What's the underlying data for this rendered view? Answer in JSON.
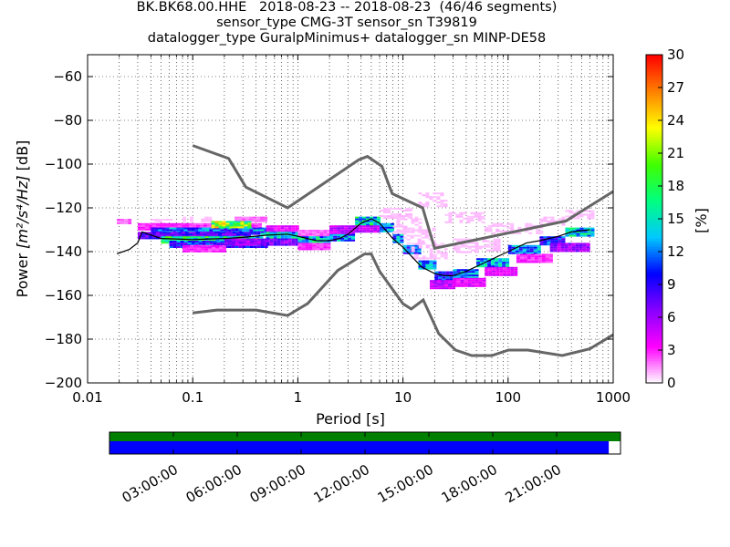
{
  "title": {
    "line1": "BK.BK68.00.HHE   2018-08-23 -- 2018-08-23  (46/46 segments)",
    "line2": "sensor_type CMG-3T sensor_sn T39819",
    "line3": "datalogger_type GuralpMinimus+ datalogger_sn MINP-DE58"
  },
  "chart_data": {
    "type": "heatmap",
    "xlabel": "Period [s]",
    "ylabel_prefix": "Power",
    "ylabel_units": "[m²/s⁴/Hz]",
    "ylabel_suffix": "[dB]",
    "x_scale": "log",
    "xlim": [
      0.01,
      1000
    ],
    "ylim": [
      -200,
      -50
    ],
    "x_ticks": [
      0.01,
      0.1,
      1,
      10,
      100,
      1000
    ],
    "x_tick_labels": [
      "0.01",
      "0.1",
      "1",
      "10",
      "100",
      "1000"
    ],
    "y_ticks": [
      -200,
      -180,
      -160,
      -140,
      -120,
      -100,
      -80,
      -60
    ],
    "y_tick_labels": [
      "−200",
      "−180",
      "−160",
      "−140",
      "−120",
      "−100",
      "−80",
      "−60"
    ],
    "grid": "dotted",
    "colorbar": {
      "label": "[%]",
      "range": [
        0,
        30
      ],
      "ticks": [
        0,
        3,
        6,
        9,
        12,
        15,
        18,
        21,
        24,
        27,
        30
      ],
      "colormap": [
        "#ffffff",
        "#ff00ff",
        "#8800ff",
        "#0000ff",
        "#00c8ff",
        "#00ff80",
        "#40ff00",
        "#ffff00",
        "#ff8000",
        "#ff0000"
      ]
    },
    "noise_models": {
      "color": "#666666",
      "high_model": {
        "x": [
          0.1,
          0.22,
          0.32,
          0.8,
          3.8,
          4.6,
          6.3,
          7.9,
          15.4,
          20,
          354.8,
          1000
        ],
        "y": [
          -91.5,
          -97.4,
          -110.5,
          -120,
          -98,
          -96.5,
          -101,
          -113.5,
          -120,
          -138.5,
          -126,
          -112.5
        ]
      },
      "low_model": {
        "x": [
          0.1,
          0.17,
          0.4,
          0.8,
          1.24,
          2.4,
          4.3,
          5,
          6,
          10,
          12,
          15.6,
          21.9,
          31.6,
          45,
          70,
          101,
          154,
          328,
          600,
          1000
        ],
        "y": [
          -168,
          -166.7,
          -166.7,
          -169.2,
          -163.7,
          -148.6,
          -141.1,
          -141.1,
          -149,
          -163.8,
          -166.2,
          -162.1,
          -177.5,
          -185,
          -187.5,
          -187.5,
          -185,
          -185,
          -187.5,
          -184.4,
          -178
        ]
      }
    },
    "mean_curve": {
      "color": "#000000",
      "x": [
        0.019,
        0.025,
        0.03,
        0.033,
        0.05,
        0.1,
        0.2,
        0.3,
        0.5,
        0.8,
        1,
        1.5,
        2,
        2.5,
        3,
        4,
        5,
        6,
        8,
        10,
        12,
        15,
        20,
        25,
        30,
        40,
        60,
        100,
        150,
        200,
        300,
        400,
        600
      ],
      "y": [
        -141,
        -139,
        -136,
        -131,
        -134,
        -134.5,
        -134,
        -133.5,
        -132.5,
        -132,
        -133,
        -135,
        -135,
        -134,
        -132,
        -127,
        -125,
        -127,
        -134,
        -138,
        -142,
        -147,
        -150,
        -151,
        -151,
        -149,
        -145,
        -140,
        -136,
        -135,
        -133,
        -131,
        -130
      ]
    },
    "psd_cells": [
      {
        "x": [
          0.019,
          0.025
        ],
        "y": [
          -127,
          -125
        ],
        "v": 2
      },
      {
        "x": [
          0.04,
          0.06
        ],
        "y": [
          -127,
          -125
        ],
        "v": 1
      },
      {
        "x": [
          0.12,
          0.15
        ],
        "y": [
          -126,
          -124
        ],
        "v": 1
      },
      {
        "x": [
          0.08,
          0.1
        ],
        "y": [
          -126,
          -124
        ],
        "v": 1
      },
      {
        "x": [
          0.25,
          0.5
        ],
        "y": [
          -126,
          -124
        ],
        "v": 2
      },
      {
        "x": [
          0.03,
          0.45
        ],
        "y": [
          -130,
          -127
        ],
        "v": 3
      },
      {
        "x": [
          0.04,
          0.6
        ],
        "y": [
          -132,
          -129
        ],
        "v": 12
      },
      {
        "x": [
          0.03,
          0.35
        ],
        "y": [
          -134,
          -131
        ],
        "v": 8
      },
      {
        "x": [
          0.05,
          0.45
        ],
        "y": [
          -136,
          -133
        ],
        "v": 16
      },
      {
        "x": [
          0.06,
          0.5
        ],
        "y": [
          -138,
          -135
        ],
        "v": 10
      },
      {
        "x": [
          0.08,
          0.2
        ],
        "y": [
          -140,
          -137
        ],
        "v": 3
      },
      {
        "x": [
          0.2,
          0.5
        ],
        "y": [
          -137,
          -134
        ],
        "v": 6
      },
      {
        "x": [
          0.15,
          0.35
        ],
        "y": [
          -129,
          -126
        ],
        "v": 20
      },
      {
        "x": [
          0.5,
          1.0
        ],
        "y": [
          -131,
          -128
        ],
        "v": 4
      },
      {
        "x": [
          0.5,
          1.0
        ],
        "y": [
          -134,
          -131
        ],
        "v": 14
      },
      {
        "x": [
          0.5,
          1.0
        ],
        "y": [
          -137,
          -134
        ],
        "v": 7
      },
      {
        "x": [
          1.0,
          2.0
        ],
        "y": [
          -133,
          -130
        ],
        "v": 2
      },
      {
        "x": [
          1.0,
          2.0
        ],
        "y": [
          -136,
          -133
        ],
        "v": 14
      },
      {
        "x": [
          1.0,
          2.0
        ],
        "y": [
          -139,
          -136
        ],
        "v": 3
      },
      {
        "x": [
          2.0,
          3.5
        ],
        "y": [
          -132,
          -128
        ],
        "v": 5
      },
      {
        "x": [
          2.0,
          3.5
        ],
        "y": [
          -135,
          -132
        ],
        "v": 12
      },
      {
        "x": [
          3.5,
          6.0
        ],
        "y": [
          -128,
          -124
        ],
        "v": 15
      },
      {
        "x": [
          3.5,
          6.0
        ],
        "y": [
          -131,
          -128
        ],
        "v": 5
      },
      {
        "x": [
          6.0,
          8.0
        ],
        "y": [
          -131,
          -127
        ],
        "v": 13
      },
      {
        "x": [
          8.0,
          10.0
        ],
        "y": [
          -136,
          -132
        ],
        "v": 12
      },
      {
        "x": [
          10.0,
          14.0
        ],
        "y": [
          -141,
          -137
        ],
        "v": 11
      },
      {
        "x": [
          14.0,
          20.0
        ],
        "y": [
          -148,
          -144
        ],
        "v": 12
      },
      {
        "x": [
          20.0,
          30.0
        ],
        "y": [
          -153,
          -149
        ],
        "v": 10
      },
      {
        "x": [
          30.0,
          50.0
        ],
        "y": [
          -152,
          -148
        ],
        "v": 12
      },
      {
        "x": [
          50.0,
          100.0
        ],
        "y": [
          -147,
          -143
        ],
        "v": 13
      },
      {
        "x": [
          100.0,
          200.0
        ],
        "y": [
          -141,
          -137
        ],
        "v": 12
      },
      {
        "x": [
          200.0,
          350.0
        ],
        "y": [
          -137,
          -133
        ],
        "v": 10
      },
      {
        "x": [
          350.0,
          650.0
        ],
        "y": [
          -133,
          -129
        ],
        "v": 14
      },
      {
        "x": [
          18.0,
          30.0
        ],
        "y": [
          -157,
          -153
        ],
        "v": 5
      },
      {
        "x": [
          30.0,
          60.0
        ],
        "y": [
          -156,
          -152
        ],
        "v": 4
      },
      {
        "x": [
          60.0,
          120.0
        ],
        "y": [
          -151,
          -147
        ],
        "v": 4
      },
      {
        "x": [
          120.0,
          250.0
        ],
        "y": [
          -145,
          -141
        ],
        "v": 3
      },
      {
        "x": [
          250.0,
          600.0
        ],
        "y": [
          -140,
          -136
        ],
        "v": 6
      },
      {
        "x": [
          6.0,
          12.0
        ],
        "y": [
          -125,
          -120
        ],
        "v": 1
      },
      {
        "x": [
          8.0,
          15.0
        ],
        "y": [
          -131,
          -124
        ],
        "v": 1
      },
      {
        "x": [
          10.0,
          20.0
        ],
        "y": [
          -136,
          -129
        ],
        "v": 1
      },
      {
        "x": [
          12.0,
          25.0
        ],
        "y": [
          -143,
          -136
        ],
        "v": 1
      },
      {
        "x": [
          14.0,
          25.0
        ],
        "y": [
          -119,
          -113
        ],
        "v": 1
      },
      {
        "x": [
          25.0,
          60.0
        ],
        "y": [
          -127,
          -122
        ],
        "v": 1
      },
      {
        "x": [
          60.0,
          200.0
        ],
        "y": [
          -132,
          -127
        ],
        "v": 1
      },
      {
        "x": [
          200.0,
          350.0
        ],
        "y": [
          -128,
          -124
        ],
        "v": 1
      },
      {
        "x": [
          350.0,
          650.0
        ],
        "y": [
          -125,
          -121
        ],
        "v": 1
      },
      {
        "x": [
          30.0,
          80.0
        ],
        "y": [
          -140,
          -134
        ],
        "v": 1
      }
    ]
  },
  "timeline": {
    "ticks": [
      "03:00:00",
      "06:00:00",
      "09:00:00",
      "12:00:00",
      "15:00:00",
      "18:00:00",
      "21:00:00"
    ],
    "data_fraction": 0.977,
    "top_color": "#007f00",
    "bottom_color": "#0000ff"
  }
}
